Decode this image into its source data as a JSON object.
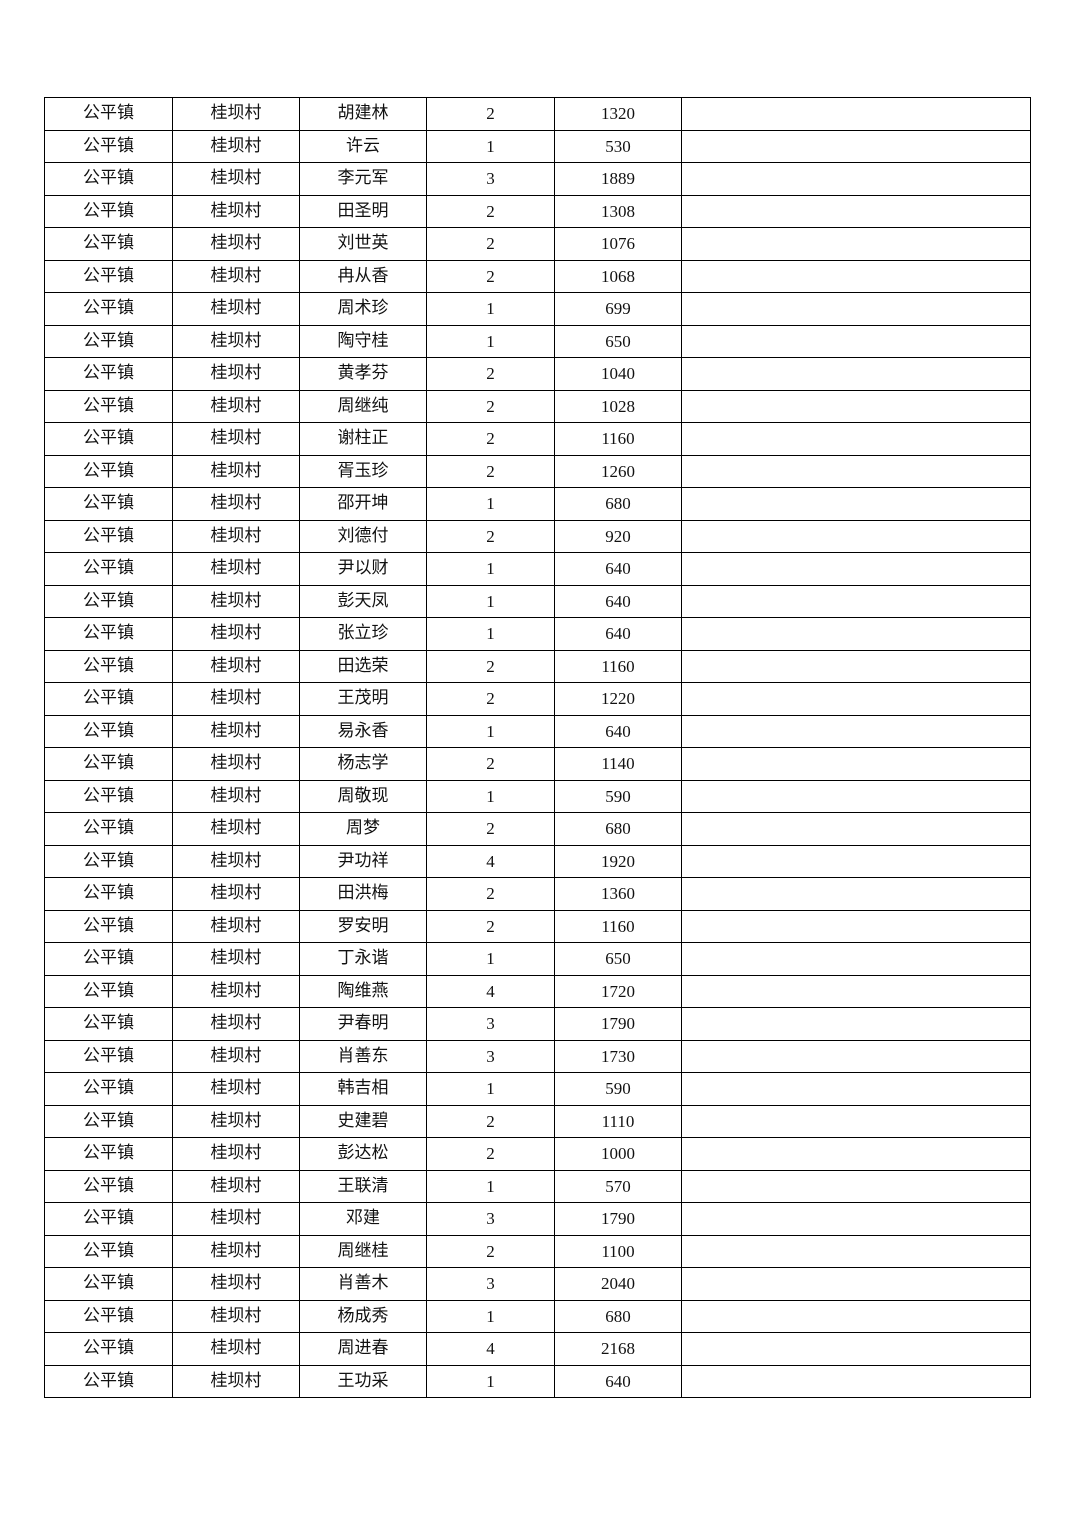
{
  "table": {
    "rows": [
      [
        "公平镇",
        "桂坝村",
        "胡建林",
        "2",
        "1320",
        ""
      ],
      [
        "公平镇",
        "桂坝村",
        "许云",
        "1",
        "530",
        ""
      ],
      [
        "公平镇",
        "桂坝村",
        "李元军",
        "3",
        "1889",
        ""
      ],
      [
        "公平镇",
        "桂坝村",
        "田圣明",
        "2",
        "1308",
        ""
      ],
      [
        "公平镇",
        "桂坝村",
        "刘世英",
        "2",
        "1076",
        ""
      ],
      [
        "公平镇",
        "桂坝村",
        "冉从香",
        "2",
        "1068",
        ""
      ],
      [
        "公平镇",
        "桂坝村",
        "周术珍",
        "1",
        "699",
        ""
      ],
      [
        "公平镇",
        "桂坝村",
        "陶守桂",
        "1",
        "650",
        ""
      ],
      [
        "公平镇",
        "桂坝村",
        "黄孝芬",
        "2",
        "1040",
        ""
      ],
      [
        "公平镇",
        "桂坝村",
        "周继纯",
        "2",
        "1028",
        ""
      ],
      [
        "公平镇",
        "桂坝村",
        "谢柱正",
        "2",
        "1160",
        ""
      ],
      [
        "公平镇",
        "桂坝村",
        "胥玉珍",
        "2",
        "1260",
        ""
      ],
      [
        "公平镇",
        "桂坝村",
        "邵开坤",
        "1",
        "680",
        ""
      ],
      [
        "公平镇",
        "桂坝村",
        "刘德付",
        "2",
        "920",
        ""
      ],
      [
        "公平镇",
        "桂坝村",
        "尹以财",
        "1",
        "640",
        ""
      ],
      [
        "公平镇",
        "桂坝村",
        "彭天凤",
        "1",
        "640",
        ""
      ],
      [
        "公平镇",
        "桂坝村",
        "张立珍",
        "1",
        "640",
        ""
      ],
      [
        "公平镇",
        "桂坝村",
        "田选荣",
        "2",
        "1160",
        ""
      ],
      [
        "公平镇",
        "桂坝村",
        "王茂明",
        "2",
        "1220",
        ""
      ],
      [
        "公平镇",
        "桂坝村",
        "易永香",
        "1",
        "640",
        ""
      ],
      [
        "公平镇",
        "桂坝村",
        "杨志学",
        "2",
        "1140",
        ""
      ],
      [
        "公平镇",
        "桂坝村",
        "周敬现",
        "1",
        "590",
        ""
      ],
      [
        "公平镇",
        "桂坝村",
        "周梦",
        "2",
        "680",
        ""
      ],
      [
        "公平镇",
        "桂坝村",
        "尹功祥",
        "4",
        "1920",
        ""
      ],
      [
        "公平镇",
        "桂坝村",
        "田洪梅",
        "2",
        "1360",
        ""
      ],
      [
        "公平镇",
        "桂坝村",
        "罗安明",
        "2",
        "1160",
        ""
      ],
      [
        "公平镇",
        "桂坝村",
        "丁永谐",
        "1",
        "650",
        ""
      ],
      [
        "公平镇",
        "桂坝村",
        "陶维燕",
        "4",
        "1720",
        ""
      ],
      [
        "公平镇",
        "桂坝村",
        "尹春明",
        "3",
        "1790",
        ""
      ],
      [
        "公平镇",
        "桂坝村",
        "肖善东",
        "3",
        "1730",
        ""
      ],
      [
        "公平镇",
        "桂坝村",
        "韩吉相",
        "1",
        "590",
        ""
      ],
      [
        "公平镇",
        "桂坝村",
        "史建碧",
        "2",
        "1110",
        ""
      ],
      [
        "公平镇",
        "桂坝村",
        "彭达松",
        "2",
        "1000",
        ""
      ],
      [
        "公平镇",
        "桂坝村",
        "王联清",
        "1",
        "570",
        ""
      ],
      [
        "公平镇",
        "桂坝村",
        "邓建",
        "3",
        "1790",
        ""
      ],
      [
        "公平镇",
        "桂坝村",
        "周继桂",
        "2",
        "1100",
        ""
      ],
      [
        "公平镇",
        "桂坝村",
        "肖善木",
        "3",
        "2040",
        ""
      ],
      [
        "公平镇",
        "桂坝村",
        "杨成秀",
        "1",
        "680",
        ""
      ],
      [
        "公平镇",
        "桂坝村",
        "周进春",
        "4",
        "2168",
        ""
      ],
      [
        "公平镇",
        "桂坝村",
        "王功采",
        "1",
        "640",
        ""
      ]
    ]
  }
}
